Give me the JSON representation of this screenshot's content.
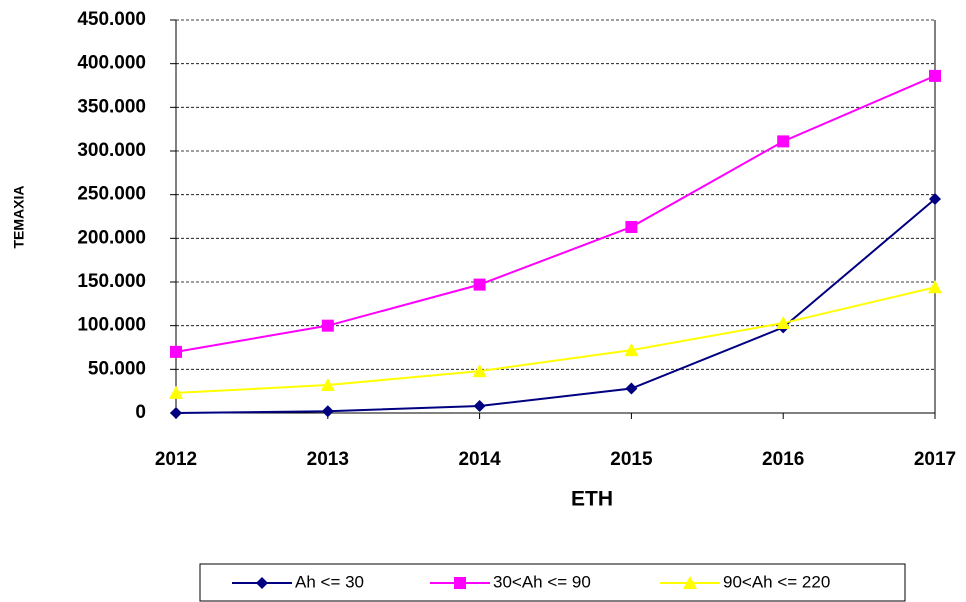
{
  "chart_data": {
    "type": "line",
    "categories": [
      "2012",
      "2013",
      "2014",
      "2015",
      "2016",
      "2017"
    ],
    "xlabel": "ETH",
    "ylabel": "TEMAXIA",
    "series": [
      {
        "name": "Ah <= 30",
        "color": "#000080",
        "marker": "diamond",
        "values": [
          0,
          2000,
          8000,
          28000,
          98000,
          245000
        ]
      },
      {
        "name": "30<Ah <= 90",
        "color": "#ff00ff",
        "marker": "square",
        "values": [
          70000,
          100000,
          147000,
          213000,
          311000,
          386000
        ]
      },
      {
        "name": "90<Ah <= 220",
        "color": "#ffff00",
        "marker": "triangle",
        "values": [
          23000,
          32000,
          48000,
          72000,
          103000,
          144000
        ]
      }
    ],
    "ylim": [
      0,
      450000
    ],
    "yticks": [
      0,
      {
        "value": 50000,
        "label": "50.000"
      },
      {
        "value": 100000,
        "label": "100.000"
      },
      {
        "value": 150000,
        "label": "150.000"
      },
      {
        "value": 200000,
        "label": "200.000"
      },
      {
        "value": 250000,
        "label": "250.000"
      },
      {
        "value": 300000,
        "label": "300.000"
      },
      {
        "value": 350000,
        "label": "350.000"
      },
      {
        "value": 400000,
        "label": "400.000"
      },
      {
        "value": 450000,
        "label": "450.000"
      }
    ],
    "grid": true,
    "legend": "bottom"
  }
}
